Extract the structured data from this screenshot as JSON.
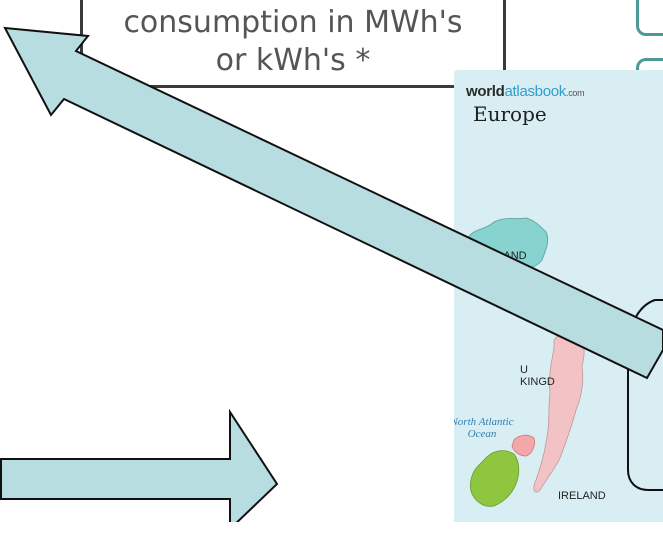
{
  "callout": {
    "line1": "consumption in MWh's",
    "line2": "or kWh's *"
  },
  "map": {
    "brand_bold": "world",
    "brand_light": "atlasbook",
    "brand_suffix": ".com",
    "title": "Europe",
    "labels": {
      "iceland": "CELAND",
      "uk_top": "U",
      "uk": "KINGD",
      "ireland": "IRELAND"
    },
    "ocean_line1": "North Atlantic",
    "ocean_line2": "Ocean"
  },
  "colors": {
    "arrow_fill": "#b8dde0",
    "arrow_stroke": "#111111",
    "sea": "#d9eef2",
    "iceland": "#86d3d0",
    "ireland": "#8fc63f",
    "northern_ireland": "#f2a7a9",
    "britain": "#f2c2c4"
  }
}
